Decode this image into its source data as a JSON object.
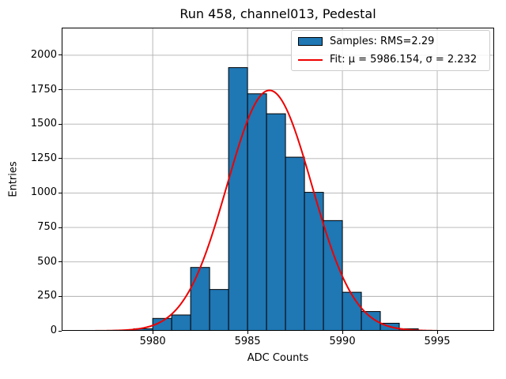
{
  "header": {
    "title": "Run 458, channel013, Pedestal"
  },
  "axes": {
    "xlabel": "ADC Counts",
    "ylabel": "Entries"
  },
  "legend": {
    "samples": "Samples: RMS=2.29",
    "fit": "Fit: μ = 5986.154, σ = 2.232"
  },
  "colors": {
    "bar_fill": "#1f77b4",
    "bar_edge": "#000000",
    "fit_line": "#ee0000",
    "grid": "#b0b0b0",
    "spine": "#000000",
    "legend_border": "#cccccc"
  },
  "chart_data": {
    "type": "bar",
    "subtype": "histogram",
    "title": "Run 458, channel013, Pedestal",
    "xlabel": "ADC Counts",
    "ylabel": "Entries",
    "xlim": [
      5975.2,
      5998.0
    ],
    "ylim": [
      0,
      2200
    ],
    "xticks": [
      5980,
      5985,
      5990,
      5995
    ],
    "yticks": [
      0,
      250,
      500,
      750,
      1000,
      1250,
      1500,
      1750,
      2000
    ],
    "grid": true,
    "legend_position": "upper right",
    "bin_width": 1,
    "bin_left_edges": [
      5976,
      5977,
      5978,
      5979,
      5980,
      5981,
      5982,
      5983,
      5984,
      5985,
      5986,
      5987,
      5988,
      5989,
      5990,
      5991,
      5992,
      5993,
      5994
    ],
    "counts": [
      2,
      2,
      4,
      15,
      90,
      115,
      460,
      300,
      1910,
      1720,
      1575,
      1260,
      1005,
      800,
      280,
      140,
      55,
      15,
      2
    ],
    "rms": 2.29,
    "fit": {
      "mu": 5986.154,
      "sigma": 2.232,
      "peak": 1745,
      "x_range": [
        5976,
        5995
      ]
    }
  }
}
